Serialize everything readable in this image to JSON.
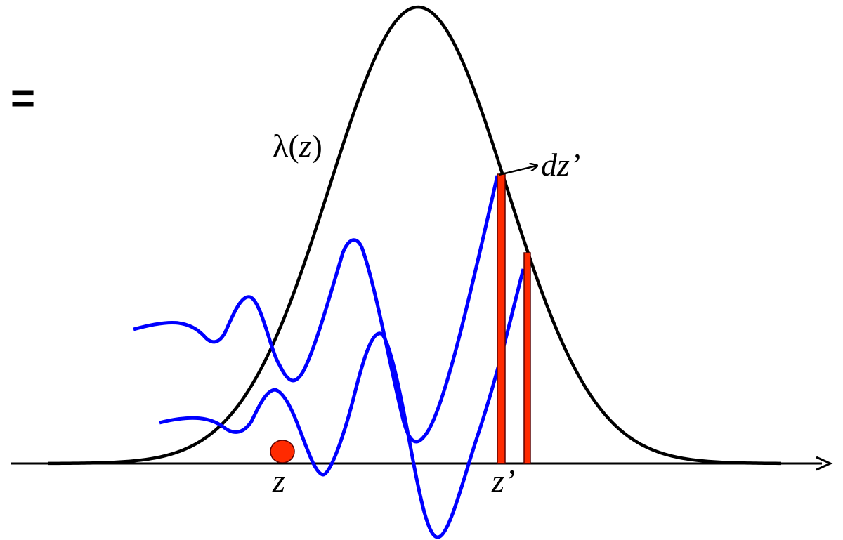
{
  "labels": {
    "equals": "=",
    "lambda_symbol": "λ",
    "lambda_open": "(",
    "lambda_var": "z",
    "lambda_close": ")",
    "dz_prime": "dz’",
    "z_label": "z",
    "z_prime_label": "z’"
  },
  "colors": {
    "curve": "#000000",
    "wake": "#0000ff",
    "slice_fill": "#ff2a00",
    "slice_stroke": "#5a0000",
    "particle": "#ff2a00",
    "axis": "#000000"
  }
}
